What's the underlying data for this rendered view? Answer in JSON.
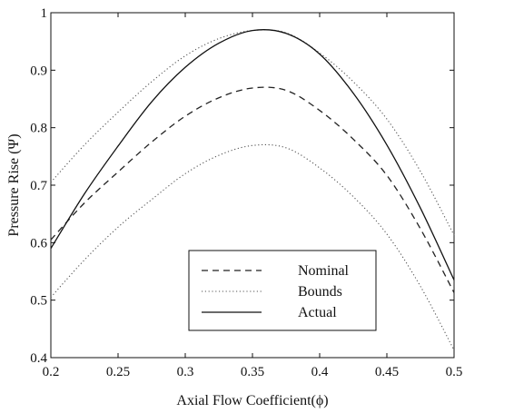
{
  "chart_data": {
    "type": "line",
    "xlabel": "Axial Flow Coefficient(ϕ)",
    "ylabel": "Pressure Rise (Ψ)",
    "xlim": [
      0.2,
      0.5
    ],
    "ylim": [
      0.4,
      1.0
    ],
    "xticks": [
      "0.2",
      "0.25",
      "0.3",
      "0.35",
      "0.4",
      "0.45",
      "0.5"
    ],
    "yticks": [
      "0.4",
      "0.5",
      "0.6",
      "0.7",
      "0.8",
      "0.9",
      "1"
    ],
    "grid": false,
    "legend_position": "lower-center",
    "x": [
      0.2,
      0.225,
      0.25,
      0.275,
      0.3,
      0.325,
      0.35,
      0.375,
      0.4,
      0.425,
      0.45,
      0.475,
      0.5
    ],
    "series": [
      {
        "name": "Nominal",
        "style": "dashed",
        "color": "#222222",
        "values": [
          0.605,
          0.669,
          0.723,
          0.775,
          0.82,
          0.852,
          0.869,
          0.865,
          0.83,
          0.78,
          0.717,
          0.624,
          0.513
        ]
      },
      {
        "name": "Bounds",
        "style": "dotted",
        "color": "#555555",
        "values": [
          0.705,
          0.77,
          0.827,
          0.88,
          0.925,
          0.955,
          0.969,
          0.965,
          0.93,
          0.88,
          0.815,
          0.724,
          0.613
        ]
      },
      {
        "name": "",
        "style": "dotted",
        "color": "#555555",
        "values": [
          0.505,
          0.57,
          0.627,
          0.675,
          0.72,
          0.752,
          0.769,
          0.765,
          0.73,
          0.68,
          0.615,
          0.524,
          0.413
        ]
      },
      {
        "name": "Actual",
        "style": "solid",
        "color": "#111111",
        "values": [
          0.59,
          0.685,
          0.768,
          0.845,
          0.905,
          0.947,
          0.969,
          0.964,
          0.928,
          0.86,
          0.77,
          0.66,
          0.535
        ]
      }
    ]
  }
}
